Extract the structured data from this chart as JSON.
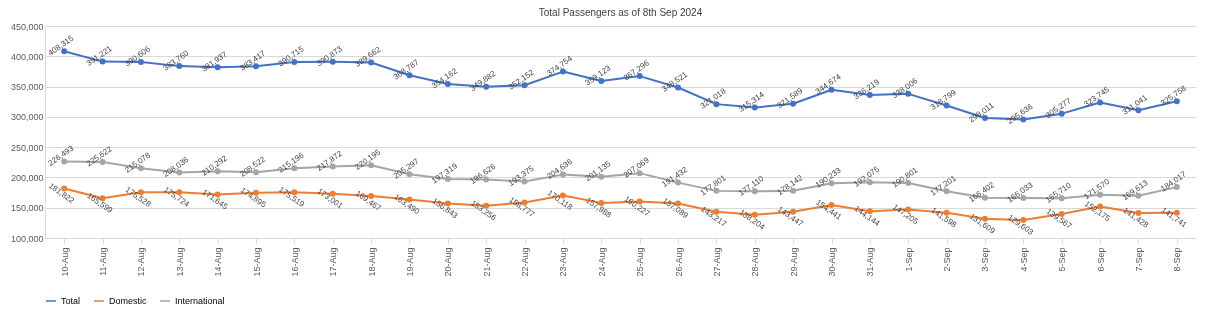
{
  "chart_data": {
    "type": "line",
    "title": "Total Passengers as of 8th Sep 2024",
    "categories": [
      "10-Aug",
      "11-Aug",
      "12-Aug",
      "13-Aug",
      "14-Aug",
      "15-Aug",
      "16-Aug",
      "17-Aug",
      "18-Aug",
      "19-Aug",
      "20-Aug",
      "21-Aug",
      "22-Aug",
      "23-Aug",
      "24-Aug",
      "25-Aug",
      "26-Aug",
      "27-Aug",
      "28-Aug",
      "29-Aug",
      "30-Aug",
      "31-Aug",
      "1-Sep",
      "2-Sep",
      "3-Sep",
      "4-Sep",
      "5-Sep",
      "6-Sep",
      "7-Sep",
      "8-Sep"
    ],
    "series": [
      {
        "name": "Total",
        "color": "#4472c4",
        "values": [
          408315,
          391221,
          390606,
          383760,
          381937,
          383417,
          390715,
          390873,
          389662,
          368787,
          354162,
          349882,
          352152,
          374754,
          359123,
          367296,
          348521,
          321018,
          315314,
          321589,
          344674,
          336219,
          338006,
          318799,
          298011,
          295636,
          305277,
          323745,
          311041,
          325758
        ],
        "value_labels": [
          "408,315",
          "391,221",
          "390,606",
          "383,760",
          "381,937",
          "383,417",
          "390,715",
          "390,873",
          "389,662",
          "368,787",
          "354,162",
          "349,882",
          "352,152",
          "374,754",
          "359,123",
          "367,296",
          "348,521",
          "321,018",
          "315,314",
          "321,589",
          "344,674",
          "336,219",
          "338,006",
          "318,799",
          "298,011",
          "295,636",
          "305,277",
          "323,745",
          "311,041",
          "325,758"
        ]
      },
      {
        "name": "Domestic",
        "color": "#ed7d31",
        "values": [
          181822,
          165599,
          175528,
          175724,
          171645,
          174895,
          175519,
          173001,
          169467,
          163490,
          156843,
          153256,
          158777,
          170118,
          157988,
          160227,
          157089,
          143217,
          138204,
          143447,
          154441,
          144144,
          147205,
          141598,
          131609,
          129603,
          139567,
          152175,
          141428,
          141741
        ],
        "value_labels": [
          "181,822",
          "165,599",
          "175,528",
          "175,724",
          "171,645",
          "174,895",
          "175,519",
          "173,001",
          "169,467",
          "163,490",
          "156,843",
          "153,256",
          "158,777",
          "170,118",
          "157,988",
          "160,227",
          "157,089",
          "143,217",
          "138,204",
          "143,447",
          "154,441",
          "144,144",
          "147,205",
          "141,598",
          "131,609",
          "129,603",
          "139,567",
          "152,175",
          "141,428",
          "141,741"
        ]
      },
      {
        "name": "International",
        "color": "#a5a5a5",
        "values": [
          226493,
          225622,
          215078,
          208036,
          210292,
          208522,
          215196,
          217872,
          220195,
          205297,
          197319,
          196626,
          193375,
          204636,
          201135,
          207069,
          191432,
          177801,
          177110,
          178142,
          190233,
          192075,
          190801,
          177201,
          166402,
          166033,
          165710,
          171570,
          169613,
          184017
        ],
        "value_labels": [
          "226,493",
          "225,622",
          "215,078",
          "208,036",
          "210,292",
          "208,522",
          "215,196",
          "217,872",
          "220,195",
          "205,297",
          "197,319",
          "196,626",
          "193,375",
          "204,636",
          "201,135",
          "207,069",
          "191,432",
          "177,801",
          "177,110",
          "178,142",
          "190,233",
          "192,075",
          "190,801",
          "177,201",
          "166,402",
          "166,033",
          "165,710",
          "171,570",
          "169,613",
          "184,017"
        ]
      }
    ],
    "ylim": [
      100000,
      450000
    ],
    "yticks": [
      {
        "value": 100000,
        "label": "100,000"
      },
      {
        "value": 150000,
        "label": "150,000"
      },
      {
        "value": 200000,
        "label": "200,000"
      },
      {
        "value": 250000,
        "label": "250,000"
      },
      {
        "value": 300000,
        "label": "300,000"
      },
      {
        "value": 350000,
        "label": "350,000"
      },
      {
        "value": 400000,
        "label": "400,000"
      },
      {
        "value": 450000,
        "label": "450,000"
      }
    ],
    "grid": "y",
    "legend": "bottom",
    "marker": "circle",
    "line_style": "solid"
  }
}
